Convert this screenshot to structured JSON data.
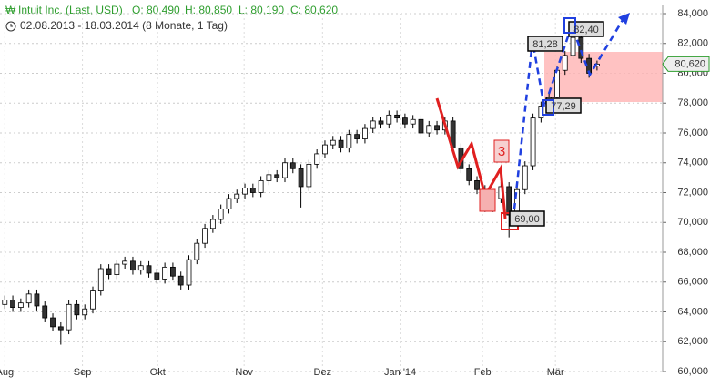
{
  "chart_data": {
    "type": "candlestick",
    "title": "Intuit Inc. (Last, USD)",
    "ohlc_labels": [
      "O: 80,490",
      "H: 80,850",
      "L: 80,190",
      "C: 80,620"
    ],
    "subtitle": "02.08.2013 - 18.03.2014 (8 Monate, 1 Tag)",
    "open": [
      64.5,
      64.8,
      64.3,
      64.6,
      65.2,
      64.4,
      63.6,
      63.0,
      62.8,
      64.5,
      63.8,
      64.2,
      65.4,
      66.9,
      66.5,
      67.2,
      67.4,
      66.8,
      67.1,
      66.6,
      66.2,
      67.0,
      66.4,
      65.8,
      67.5,
      68.6,
      69.6,
      70.2,
      70.9,
      71.6,
      71.9,
      72.3,
      72.0,
      72.8,
      73.2,
      73.0,
      74.0,
      73.6,
      72.4,
      73.9,
      74.6,
      75.2,
      75.5,
      75.0,
      75.9,
      75.6,
      76.3,
      76.8,
      76.6,
      77.2,
      77.0,
      76.6,
      76.9,
      76.0,
      76.5,
      76.2,
      76.8,
      75.0,
      73.6,
      72.8,
      72.2,
      71.0,
      71.6,
      72.4,
      70.5,
      72.2,
      73.8,
      77.0,
      77.8,
      78.4,
      80.2,
      81.2,
      82.4,
      81.0,
      80.49
    ],
    "high": [
      65.1,
      65.1,
      64.9,
      65.5,
      65.5,
      64.7,
      63.9,
      63.3,
      64.8,
      64.8,
      64.5,
      65.7,
      67.2,
      67.2,
      67.5,
      67.7,
      67.7,
      67.4,
      67.4,
      66.9,
      67.3,
      67.3,
      66.7,
      67.8,
      68.9,
      69.9,
      70.5,
      71.2,
      71.9,
      72.2,
      72.6,
      72.6,
      73.1,
      73.5,
      73.5,
      74.3,
      74.3,
      73.9,
      74.2,
      74.9,
      75.5,
      75.8,
      75.8,
      76.2,
      76.2,
      76.6,
      77.1,
      77.1,
      77.5,
      77.5,
      77.3,
      77.2,
      77.2,
      76.8,
      76.8,
      77.1,
      77.1,
      75.3,
      73.9,
      73.1,
      72.5,
      71.9,
      72.7,
      72.7,
      72.5,
      74.1,
      77.3,
      78.1,
      78.7,
      80.5,
      81.5,
      82.9,
      82.7,
      81.3,
      80.85
    ],
    "low": [
      64.2,
      64.0,
      64.0,
      64.3,
      64.1,
      63.3,
      62.7,
      61.8,
      62.5,
      63.5,
      63.5,
      63.9,
      65.1,
      66.2,
      66.2,
      66.9,
      66.5,
      66.5,
      66.3,
      65.9,
      65.9,
      66.1,
      65.5,
      65.5,
      67.2,
      68.3,
      69.3,
      69.9,
      70.6,
      71.3,
      71.6,
      71.7,
      71.7,
      72.5,
      72.7,
      72.7,
      73.3,
      71.0,
      72.1,
      73.6,
      74.3,
      74.9,
      74.7,
      74.7,
      75.3,
      75.3,
      76.0,
      76.3,
      76.3,
      76.7,
      76.3,
      76.3,
      75.7,
      75.7,
      75.9,
      75.9,
      74.7,
      73.3,
      72.5,
      71.9,
      70.7,
      70.7,
      71.3,
      69.0,
      70.2,
      71.9,
      73.5,
      76.7,
      77.5,
      78.1,
      79.9,
      80.9,
      80.7,
      79.7,
      80.19
    ],
    "close": [
      64.8,
      64.3,
      64.6,
      65.2,
      64.4,
      63.6,
      63.0,
      62.8,
      64.5,
      63.8,
      64.2,
      65.4,
      66.9,
      66.5,
      67.2,
      67.4,
      66.8,
      67.1,
      66.6,
      66.2,
      67.0,
      66.4,
      65.8,
      67.5,
      68.6,
      69.6,
      70.2,
      70.9,
      71.6,
      71.9,
      72.3,
      72.0,
      72.8,
      73.2,
      73.0,
      74.0,
      73.6,
      72.4,
      73.9,
      74.6,
      75.2,
      75.5,
      75.0,
      75.9,
      75.6,
      76.3,
      76.8,
      76.6,
      77.2,
      77.0,
      76.6,
      76.9,
      76.0,
      76.5,
      76.2,
      76.8,
      75.0,
      73.6,
      72.8,
      72.2,
      71.0,
      71.6,
      72.4,
      70.5,
      72.2,
      73.8,
      77.0,
      77.8,
      78.4,
      80.2,
      81.2,
      82.4,
      81.0,
      80.0,
      80.62
    ],
    "up_color": "#ffffff",
    "down_color": "#333333",
    "xlim": [
      -0.6,
      82.2
    ],
    "xticks": [
      {
        "value": 0,
        "label": "Aug"
      },
      {
        "value": 9.7,
        "label": "Sep"
      },
      {
        "value": 19.1,
        "label": "Okt"
      },
      {
        "value": 29.9,
        "label": "Nov"
      },
      {
        "value": 39.7,
        "label": "Dez"
      },
      {
        "value": 49.4,
        "label": "Jan '14"
      },
      {
        "value": 59.7,
        "label": "Feb"
      },
      {
        "value": 68.8,
        "label": "Mär"
      }
    ],
    "ylim": [
      60,
      84
    ],
    "yticks": [
      {
        "value": 60,
        "label": "60,000"
      },
      {
        "value": 62,
        "label": "62,000"
      },
      {
        "value": 64,
        "label": "64,000"
      },
      {
        "value": 66,
        "label": "66,000"
      },
      {
        "value": 68,
        "label": "68,000"
      },
      {
        "value": 70,
        "label": "70,000"
      },
      {
        "value": 72,
        "label": "72,000"
      },
      {
        "value": 74,
        "label": "74,000"
      },
      {
        "value": 76,
        "label": "76,000"
      },
      {
        "value": 78,
        "label": "78,000"
      },
      {
        "value": 80,
        "label": "80,000"
      },
      {
        "value": 82,
        "label": "82,000"
      },
      {
        "value": 84,
        "label": "84,000"
      }
    ],
    "grid": true,
    "annotations": [
      "81,28",
      "77,29",
      "82,40",
      "69,00",
      "3"
    ],
    "last_price": {
      "value": 80.62,
      "label": "80,620"
    }
  }
}
